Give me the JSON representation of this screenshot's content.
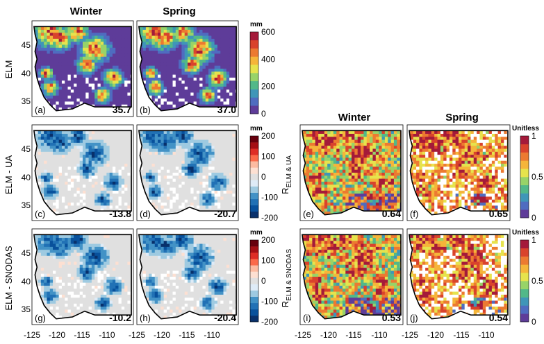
{
  "chart_data": {
    "type": "heatmap",
    "columns": {
      "winter": "Winter",
      "spring": "Spring"
    },
    "row_labels": {
      "elm": "ELM",
      "elm_ua": "ELM - UA",
      "elm_snodas": "ELM - SNODAS",
      "r_ua": "R",
      "r_ua_sub": "ELM & UA",
      "r_snodas": "R",
      "r_snodas_sub": "ELM & SNODAS"
    },
    "x_ticks": [
      "-125",
      "-120",
      "-115",
      "-110"
    ],
    "y_ticks": [
      "45",
      "40",
      "35"
    ],
    "xlim": [
      -125,
      -103
    ],
    "ylim": [
      31.5,
      49.5
    ],
    "panels": [
      {
        "label": "(a)",
        "value": "35.7",
        "season": "Winter",
        "field": "swe"
      },
      {
        "label": "(b)",
        "value": "37.0",
        "season": "Spring",
        "field": "swe"
      },
      {
        "label": "(c)",
        "value": "-13.8",
        "season": "Winter",
        "field": "diff"
      },
      {
        "label": "(d)",
        "value": "-20.7",
        "season": "Spring",
        "field": "diff"
      },
      {
        "label": "(g)",
        "value": "-10.2",
        "season": "Winter",
        "field": "diff"
      },
      {
        "label": "(h)",
        "value": "-20.4",
        "season": "Spring",
        "field": "diff"
      },
      {
        "label": "(e)",
        "value": "0.64",
        "season": "Winter",
        "field": "corr"
      },
      {
        "label": "(f)",
        "value": "0.65",
        "season": "Spring",
        "field": "corr"
      },
      {
        "label": "(i)",
        "value": "0.53",
        "season": "Winter",
        "field": "corr"
      },
      {
        "label": "(j)",
        "value": "0.54",
        "season": "Spring",
        "field": "corr"
      }
    ],
    "colorbars": [
      {
        "unit": "mm",
        "ticks": [
          "600",
          "400",
          "200",
          "0"
        ],
        "range": [
          0,
          600
        ],
        "colors": [
          "#5e3c99",
          "#4f6cc0",
          "#3f96b8",
          "#52b889",
          "#98d368",
          "#e6e34d",
          "#f5b53a",
          "#ec7a31",
          "#d9432c",
          "#a41a3a"
        ]
      },
      {
        "unit": "mm",
        "ticks": [
          "200",
          "100",
          "0",
          "-100",
          "-200"
        ],
        "range": [
          -200,
          200
        ],
        "colors": [
          "#08306b",
          "#08519c",
          "#2171b5",
          "#4292c6",
          "#9ecae1",
          "#deebf7",
          "#e0e0e0",
          "#fde0d2",
          "#fcbba1",
          "#fb6a4a",
          "#de2d26",
          "#a50f15",
          "#67000d"
        ]
      },
      {
        "unit": "mm",
        "ticks": [
          "200",
          "100",
          "0",
          "-100",
          "-200"
        ],
        "range": [
          -200,
          200
        ],
        "colors": [
          "#08306b",
          "#08519c",
          "#2171b5",
          "#4292c6",
          "#9ecae1",
          "#deebf7",
          "#e0e0e0",
          "#fde0d2",
          "#fcbba1",
          "#fb6a4a",
          "#de2d26",
          "#a50f15",
          "#67000d"
        ]
      },
      {
        "unit": "Unitless",
        "ticks": [
          "1",
          "0.5",
          "0"
        ],
        "range": [
          0,
          1
        ],
        "colors": [
          "#5e3c99",
          "#4f6cc0",
          "#3f96b8",
          "#52b889",
          "#98d368",
          "#e6e34d",
          "#f5b53a",
          "#ec7a31",
          "#d9432c",
          "#a41a3a"
        ]
      },
      {
        "unit": "Unitless",
        "ticks": [
          "1",
          "0.5",
          "0"
        ],
        "range": [
          0,
          1
        ],
        "colors": [
          "#5e3c99",
          "#4f6cc0",
          "#3f96b8",
          "#52b889",
          "#98d368",
          "#e6e34d",
          "#f5b53a",
          "#ec7a31",
          "#d9432c",
          "#a41a3a"
        ]
      }
    ]
  }
}
